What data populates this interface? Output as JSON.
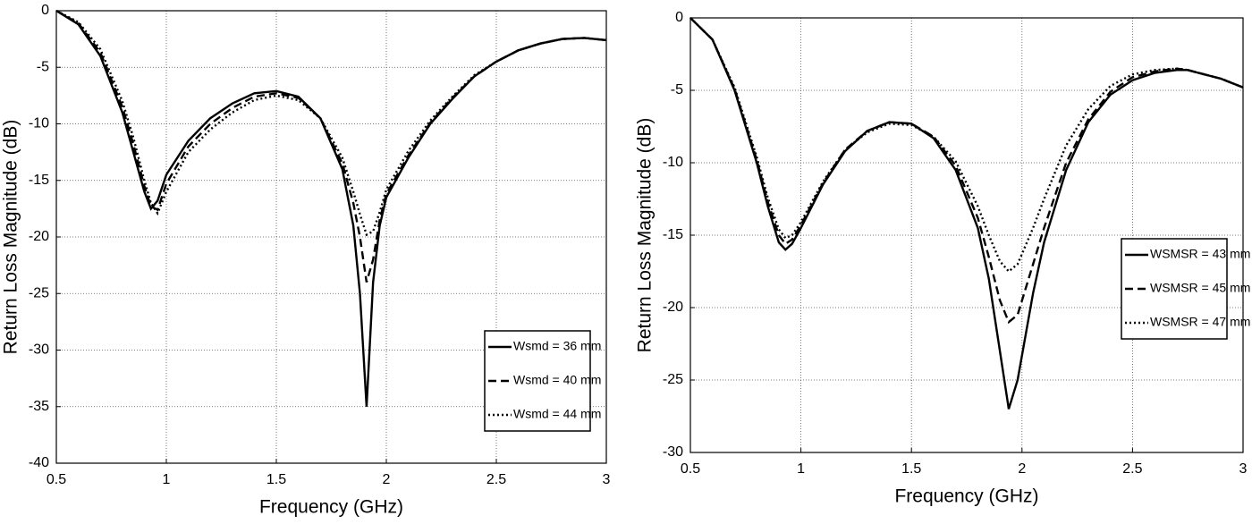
{
  "chart_data": [
    {
      "type": "line",
      "x_label": "Frequency (GHz)",
      "y_label": "Return Loss Magnitude (dB)",
      "x": [
        0.5,
        0.6,
        0.7,
        0.8,
        0.85,
        0.9,
        0.93,
        0.96,
        1.0,
        1.1,
        1.2,
        1.3,
        1.4,
        1.5,
        1.6,
        1.7,
        1.8,
        1.85,
        1.88,
        1.91,
        1.94,
        1.97,
        2.0,
        2.1,
        2.2,
        2.3,
        2.4,
        2.5,
        2.6,
        2.7,
        2.8,
        2.9,
        3.0
      ],
      "series": [
        {
          "name": "Wsmd = 36 mm",
          "color": "#000000",
          "style": "solid",
          "values": [
            0,
            -1.2,
            -4,
            -9,
            -12.5,
            -16,
            -17.5,
            -16.8,
            -14.5,
            -11.5,
            -9.5,
            -8.2,
            -7.3,
            -7.1,
            -7.6,
            -9.5,
            -14,
            -19,
            -25,
            -35,
            -24,
            -19,
            -16.5,
            -13,
            -10,
            -7.8,
            -5.8,
            -4.5,
            -3.5,
            -2.9,
            -2.5,
            -2.4,
            -2.6
          ]
        },
        {
          "name": "Wsmd = 40 mm",
          "color": "#000000",
          "style": "dashed",
          "values": [
            0,
            -1.1,
            -3.7,
            -8.5,
            -11.8,
            -15.5,
            -17.3,
            -17.6,
            -15.3,
            -12,
            -10,
            -8.6,
            -7.6,
            -7.3,
            -7.7,
            -9.5,
            -13.5,
            -17,
            -20,
            -24,
            -22,
            -18.5,
            -16.2,
            -12.8,
            -9.9,
            -7.7,
            -5.8,
            -4.5,
            -3.5,
            -2.9,
            -2.5,
            -2.4,
            -2.6
          ]
        },
        {
          "name": "Wsmd = 44 mm",
          "color": "#000000",
          "style": "dotted",
          "values": [
            0,
            -1,
            -3.4,
            -8,
            -11.2,
            -15,
            -17,
            -17.9,
            -16,
            -12.5,
            -10.5,
            -9,
            -7.9,
            -7.5,
            -7.9,
            -9.5,
            -13,
            -16,
            -18,
            -19.8,
            -19.5,
            -17.8,
            -15.8,
            -12.4,
            -9.7,
            -7.6,
            -5.7,
            -4.5,
            -3.5,
            -2.9,
            -2.5,
            -2.4,
            -2.6
          ]
        }
      ],
      "xlim": [
        0.5,
        3
      ],
      "xticks": [
        0.5,
        1,
        1.5,
        2,
        2.5,
        3
      ],
      "ylim": [
        -40,
        0
      ],
      "yticks": [
        -40,
        -35,
        -30,
        -25,
        -20,
        -15,
        -10,
        -5,
        0
      ],
      "grid": true,
      "legend": "lower right"
    },
    {
      "type": "line",
      "x_label": "Frequency (GHz)",
      "y_label": "Return Loss Magnitude (dB)",
      "x": [
        0.5,
        0.6,
        0.7,
        0.8,
        0.85,
        0.9,
        0.93,
        0.96,
        1.0,
        1.1,
        1.2,
        1.3,
        1.4,
        1.5,
        1.6,
        1.7,
        1.8,
        1.85,
        1.9,
        1.94,
        1.98,
        2.05,
        2.1,
        2.2,
        2.3,
        2.4,
        2.5,
        2.6,
        2.7,
        2.75,
        2.8,
        2.9,
        3.0
      ],
      "series": [
        {
          "name": "WSMSR = 43 mm",
          "color": "#000000",
          "style": "solid",
          "values": [
            0,
            -1.5,
            -5,
            -10,
            -13,
            -15.5,
            -16,
            -15.6,
            -14.5,
            -11.5,
            -9.2,
            -7.8,
            -7.2,
            -7.3,
            -8.3,
            -10.5,
            -14.5,
            -18,
            -23,
            -27,
            -25,
            -19,
            -15.5,
            -10.5,
            -7.2,
            -5.3,
            -4.3,
            -3.8,
            -3.6,
            -3.6,
            -3.8,
            -4.2,
            -4.8
          ]
        },
        {
          "name": "WSMSR = 45 mm",
          "color": "#000000",
          "style": "dashed",
          "values": [
            0,
            -1.5,
            -4.9,
            -9.8,
            -12.7,
            -15,
            -15.6,
            -15.3,
            -14.3,
            -11.4,
            -9.1,
            -7.8,
            -7.2,
            -7.3,
            -8.2,
            -10.2,
            -13.8,
            -16.5,
            -19.5,
            -21,
            -20.5,
            -17,
            -14.5,
            -10,
            -7,
            -5.1,
            -4.1,
            -3.7,
            -3.5,
            -3.6,
            -3.8,
            -4.2,
            -4.8
          ]
        },
        {
          "name": "WSMSR = 47 mm",
          "color": "#000000",
          "style": "dotted",
          "values": [
            0,
            -1.5,
            -4.8,
            -9.6,
            -12.4,
            -14.6,
            -15.2,
            -15,
            -14.1,
            -11.3,
            -9.1,
            -7.9,
            -7.3,
            -7.4,
            -8.2,
            -9.9,
            -13,
            -15,
            -16.8,
            -17.5,
            -17,
            -14.5,
            -12.5,
            -8.8,
            -6.3,
            -4.7,
            -3.9,
            -3.6,
            -3.5,
            -3.6,
            -3.8,
            -4.2,
            -4.8
          ]
        }
      ],
      "xlim": [
        0.5,
        3
      ],
      "xticks": [
        0.5,
        1,
        1.5,
        2,
        2.5,
        3
      ],
      "ylim": [
        -30,
        0
      ],
      "yticks": [
        -30,
        -25,
        -20,
        -15,
        -10,
        -5,
        0
      ],
      "grid": true,
      "legend": "center right"
    }
  ]
}
